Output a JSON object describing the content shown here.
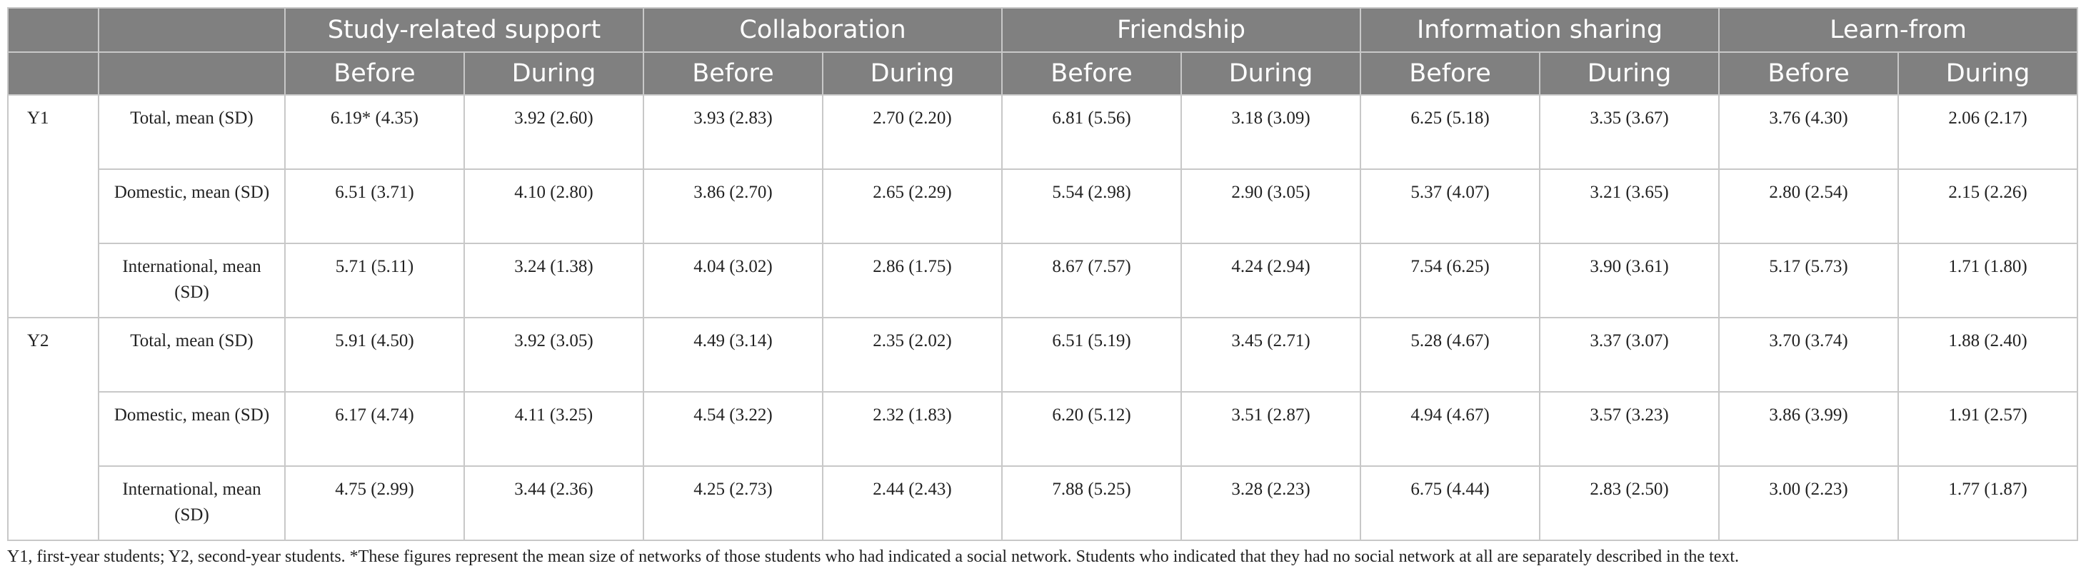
{
  "table": {
    "groups": [
      "Study-related support",
      "Collaboration",
      "Friendship",
      "Information sharing",
      "Learn-from"
    ],
    "sub_before": "Before",
    "sub_during": "During",
    "years": [
      {
        "label": "Y1",
        "rows": [
          {
            "label": "Total, mean (SD)",
            "values": [
              "6.19* (4.35)",
              "3.92 (2.60)",
              "3.93 (2.83)",
              "2.70 (2.20)",
              "6.81 (5.56)",
              "3.18 (3.09)",
              "6.25 (5.18)",
              "3.35 (3.67)",
              "3.76 (4.30)",
              "2.06 (2.17)"
            ]
          },
          {
            "label": "Domestic, mean (SD)",
            "values": [
              "6.51 (3.71)",
              "4.10 (2.80)",
              "3.86 (2.70)",
              "2.65 (2.29)",
              "5.54 (2.98)",
              "2.90 (3.05)",
              "5.37 (4.07)",
              "3.21 (3.65)",
              "2.80 (2.54)",
              "2.15 (2.26)"
            ]
          },
          {
            "label": "International, mean (SD)",
            "values": [
              "5.71 (5.11)",
              "3.24 (1.38)",
              "4.04 (3.02)",
              "2.86 (1.75)",
              "8.67 (7.57)",
              "4.24 (2.94)",
              "7.54 (6.25)",
              "3.90 (3.61)",
              "5.17 (5.73)",
              "1.71 (1.80)"
            ]
          }
        ]
      },
      {
        "label": "Y2",
        "rows": [
          {
            "label": "Total, mean (SD)",
            "values": [
              "5.91 (4.50)",
              "3.92 (3.05)",
              "4.49 (3.14)",
              "2.35 (2.02)",
              "6.51 (5.19)",
              "3.45 (2.71)",
              "5.28 (4.67)",
              "3.37 (3.07)",
              "3.70 (3.74)",
              "1.88 (2.40)"
            ]
          },
          {
            "label": "Domestic, mean (SD)",
            "values": [
              "6.17 (4.74)",
              "4.11 (3.25)",
              "4.54 (3.22)",
              "2.32 (1.83)",
              "6.20 (5.12)",
              "3.51 (2.87)",
              "4.94 (4.67)",
              "3.57 (3.23)",
              "3.86 (3.99)",
              "1.91 (2.57)"
            ]
          },
          {
            "label": "International, mean (SD)",
            "values": [
              "4.75 (2.99)",
              "3.44 (2.36)",
              "4.25 (2.73)",
              "2.44 (2.43)",
              "7.88 (5.25)",
              "3.28 (2.23)",
              "6.75 (4.44)",
              "2.83 (2.50)",
              "3.00 (2.23)",
              "1.77 (1.87)"
            ]
          }
        ]
      }
    ]
  },
  "footnote": "Y1, first-year students; Y2, second-year students. *These figures represent the mean size of networks of those students who had indicated a social network. Students who indicated that they had no social network at all are separately described in the text.",
  "colors": {
    "header_bg": "#808080",
    "header_text": "#ffffff",
    "border": "#c8c8c8",
    "body_text": "#222222"
  }
}
